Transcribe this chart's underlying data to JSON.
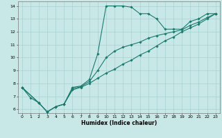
{
  "xlabel": "Humidex (Indice chaleur)",
  "bg_color": "#c8e8e8",
  "grid_color": "#a8d0d0",
  "line_color": "#1a7a6e",
  "xlim": [
    -0.5,
    23.5
  ],
  "ylim": [
    5.7,
    14.35
  ],
  "xticks": [
    0,
    1,
    2,
    3,
    4,
    5,
    6,
    7,
    8,
    9,
    10,
    11,
    12,
    13,
    14,
    15,
    16,
    17,
    18,
    19,
    20,
    21,
    22,
    23
  ],
  "yticks": [
    6,
    7,
    8,
    9,
    10,
    11,
    12,
    13,
    14
  ],
  "curve1_x": [
    0,
    1,
    2,
    3,
    4,
    5,
    6,
    7,
    8,
    9,
    10,
    11,
    12,
    13,
    14,
    15,
    16,
    17,
    18,
    19,
    20,
    21,
    22,
    23
  ],
  "curve1_y": [
    7.7,
    6.9,
    6.5,
    5.8,
    6.2,
    6.4,
    7.7,
    7.8,
    8.3,
    10.3,
    14.0,
    14.0,
    14.0,
    13.9,
    13.4,
    13.4,
    13.0,
    12.2,
    12.2,
    12.2,
    12.8,
    13.0,
    13.4,
    13.4
  ],
  "curve2_x": [
    0,
    2,
    3,
    4,
    5,
    6,
    7,
    8,
    9,
    10,
    11,
    12,
    13,
    14,
    15,
    16,
    17,
    18,
    19,
    20,
    21,
    22,
    23
  ],
  "curve2_y": [
    7.7,
    6.5,
    5.8,
    6.2,
    6.4,
    7.5,
    7.7,
    8.0,
    8.4,
    8.8,
    9.1,
    9.5,
    9.8,
    10.2,
    10.5,
    10.9,
    11.3,
    11.6,
    12.0,
    12.3,
    12.6,
    13.0,
    13.4
  ],
  "curve3_x": [
    0,
    2,
    3,
    4,
    5,
    6,
    7,
    8,
    9,
    10,
    11,
    12,
    13,
    14,
    15,
    16,
    17,
    18,
    19,
    20,
    21,
    22,
    23
  ],
  "curve3_y": [
    7.7,
    6.5,
    5.8,
    6.2,
    6.4,
    7.6,
    7.75,
    8.15,
    9.0,
    10.0,
    10.5,
    10.8,
    11.0,
    11.2,
    11.5,
    11.7,
    11.85,
    12.0,
    12.15,
    12.5,
    12.75,
    13.1,
    13.4
  ]
}
